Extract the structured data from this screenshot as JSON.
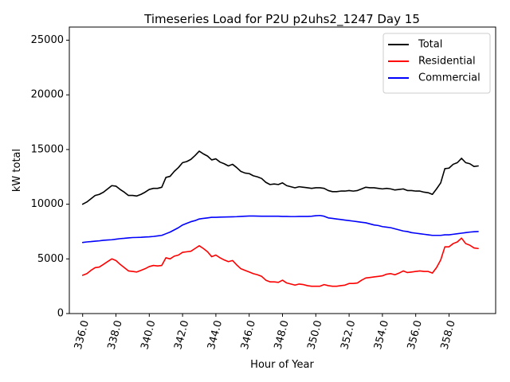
{
  "chart_data": {
    "type": "line",
    "title": "Timeseries Load for P2U p2uhs2_1247  Day 15",
    "xlabel": "Hour of Year",
    "ylabel": "kW total",
    "xlim": [
      335.2,
      360.8
    ],
    "ylim": [
      0,
      26200
    ],
    "x_ticks": [
      336,
      338,
      340,
      342,
      344,
      346,
      348,
      350,
      352,
      354,
      356,
      358
    ],
    "x_tick_labels": [
      "336.0",
      "338.0",
      "340.0",
      "342.0",
      "344.0",
      "346.0",
      "348.0",
      "350.0",
      "352.0",
      "354.0",
      "356.0",
      "358.0"
    ],
    "y_ticks": [
      0,
      5000,
      10000,
      15000,
      20000,
      25000
    ],
    "y_tick_labels": [
      "0",
      "5000",
      "10000",
      "15000",
      "20000",
      "25000"
    ],
    "legend_position": "top-right",
    "x": [
      336.0,
      336.25,
      336.5,
      336.75,
      337.0,
      337.25,
      337.5,
      337.75,
      338.0,
      338.25,
      338.5,
      338.75,
      339.0,
      339.25,
      339.5,
      339.75,
      340.0,
      340.25,
      340.5,
      340.75,
      341.0,
      341.25,
      341.5,
      341.75,
      342.0,
      342.25,
      342.5,
      342.75,
      343.0,
      343.25,
      343.5,
      343.75,
      344.0,
      344.25,
      344.5,
      344.75,
      345.0,
      345.25,
      345.5,
      345.75,
      346.0,
      346.25,
      346.5,
      346.75,
      347.0,
      347.25,
      347.5,
      347.75,
      348.0,
      348.25,
      348.5,
      348.75,
      349.0,
      349.25,
      349.5,
      349.75,
      350.0,
      350.25,
      350.5,
      350.75,
      351.0,
      351.25,
      351.5,
      351.75,
      352.0,
      352.25,
      352.5,
      352.75,
      353.0,
      353.25,
      353.5,
      353.75,
      354.0,
      354.25,
      354.5,
      354.75,
      355.0,
      355.25,
      355.5,
      355.75,
      356.0,
      356.25,
      356.5,
      356.75,
      357.0,
      357.25,
      357.5,
      357.75,
      358.0,
      358.25,
      358.5,
      358.75,
      359.0,
      359.25,
      359.5,
      359.75
    ],
    "series": [
      {
        "name": "Total",
        "color": "#000000",
        "values": [
          10000,
          10200,
          10500,
          10800,
          10900,
          11100,
          11400,
          11700,
          11650,
          11350,
          11100,
          10800,
          10800,
          10750,
          10900,
          11100,
          11350,
          11450,
          11450,
          11550,
          12450,
          12550,
          13000,
          13350,
          13800,
          13900,
          14100,
          14450,
          14850,
          14600,
          14400,
          14050,
          14150,
          13850,
          13700,
          13500,
          13650,
          13350,
          13000,
          12850,
          12800,
          12600,
          12500,
          12350,
          12000,
          11800,
          11850,
          11800,
          11950,
          11700,
          11600,
          11500,
          11600,
          11550,
          11500,
          11450,
          11500,
          11500,
          11450,
          11250,
          11150,
          11150,
          11200,
          11200,
          11250,
          11200,
          11250,
          11400,
          11550,
          11500,
          11500,
          11450,
          11400,
          11450,
          11400,
          11300,
          11350,
          11400,
          11250,
          11250,
          11200,
          11200,
          11100,
          11050,
          10900,
          11400,
          11950,
          13250,
          13300,
          13650,
          13800,
          14200,
          13800,
          13700,
          13450,
          13500
        ]
      },
      {
        "name": "Residential",
        "color": "#ff0000",
        "values": [
          3500,
          3650,
          3950,
          4200,
          4250,
          4500,
          4750,
          5000,
          4850,
          4500,
          4200,
          3900,
          3850,
          3800,
          3950,
          4100,
          4300,
          4400,
          4350,
          4400,
          5100,
          5000,
          5250,
          5350,
          5600,
          5650,
          5700,
          5950,
          6200,
          5950,
          5650,
          5200,
          5350,
          5100,
          4900,
          4750,
          4850,
          4450,
          4100,
          3950,
          3800,
          3650,
          3550,
          3400,
          3050,
          2900,
          2900,
          2850,
          3050,
          2800,
          2700,
          2600,
          2700,
          2650,
          2550,
          2500,
          2500,
          2500,
          2650,
          2550,
          2500,
          2500,
          2550,
          2600,
          2750,
          2750,
          2800,
          3050,
          3250,
          3300,
          3350,
          3400,
          3450,
          3600,
          3650,
          3550,
          3700,
          3900,
          3750,
          3800,
          3850,
          3900,
          3850,
          3850,
          3700,
          4200,
          4900,
          6100,
          6100,
          6400,
          6550,
          6900,
          6400,
          6250,
          6000,
          5950
        ]
      },
      {
        "name": "Commercial",
        "color": "#0000ff",
        "values": [
          6500,
          6550,
          6580,
          6620,
          6650,
          6700,
          6730,
          6750,
          6800,
          6850,
          6880,
          6920,
          6950,
          6960,
          6970,
          7000,
          7020,
          7050,
          7100,
          7150,
          7300,
          7450,
          7650,
          7850,
          8100,
          8250,
          8400,
          8500,
          8650,
          8700,
          8750,
          8800,
          8800,
          8820,
          8830,
          8840,
          8850,
          8860,
          8880,
          8900,
          8920,
          8920,
          8910,
          8900,
          8900,
          8900,
          8900,
          8900,
          8880,
          8880,
          8870,
          8870,
          8880,
          8880,
          8880,
          8900,
          8950,
          8970,
          8900,
          8750,
          8700,
          8650,
          8600,
          8550,
          8500,
          8450,
          8400,
          8350,
          8300,
          8200,
          8100,
          8050,
          7950,
          7900,
          7850,
          7750,
          7650,
          7550,
          7500,
          7400,
          7350,
          7300,
          7250,
          7200,
          7150,
          7150,
          7150,
          7200,
          7200,
          7250,
          7300,
          7350,
          7400,
          7450,
          7480,
          7500
        ]
      }
    ]
  }
}
